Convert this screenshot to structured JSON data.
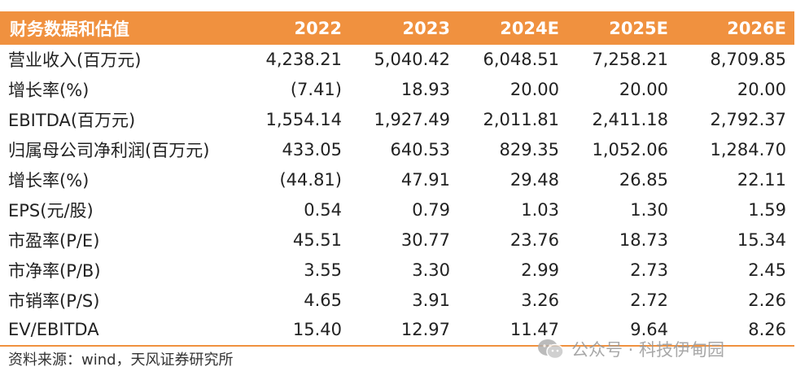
{
  "header": [
    "财务数据和估值",
    "2022",
    "2023",
    "2024E",
    "2025E",
    "2026E"
  ],
  "rows": [
    {
      "label": "营业收入(百万元)",
      "values": [
        "4,238.21",
        "5,040.42",
        "6,048.51",
        "7,258.21",
        "8,709.85"
      ]
    },
    {
      "label": "增长率(%)",
      "values": [
        "(7.41)",
        "18.93",
        "20.00",
        "20.00",
        "20.00"
      ]
    },
    {
      "label": "EBITDA(百万元)",
      "values": [
        "1,554.14",
        "1,927.49",
        "2,011.81",
        "2,411.18",
        "2,792.37"
      ]
    },
    {
      "label": "归属母公司净利润(百万元)",
      "values": [
        "433.05",
        "640.53",
        "829.35",
        "1,052.06",
        "1,284.70"
      ]
    },
    {
      "label": "增长率(%)",
      "values": [
        "(44.81)",
        "47.91",
        "29.48",
        "26.85",
        "22.11"
      ]
    },
    {
      "label": "EPS(元/股)",
      "values": [
        "0.54",
        "0.79",
        "1.03",
        "1.30",
        "1.59"
      ]
    },
    {
      "label": "市盈率(P/E)",
      "values": [
        "45.51",
        "30.77",
        "23.76",
        "18.73",
        "15.34"
      ]
    },
    {
      "label": "市净率(P/B)",
      "values": [
        "3.55",
        "3.30",
        "2.99",
        "2.73",
        "2.45"
      ]
    },
    {
      "label": "市销率(P/S)",
      "values": [
        "4.65",
        "3.91",
        "3.26",
        "2.72",
        "2.26"
      ]
    },
    {
      "label": "EV/EBITDA",
      "values": [
        "15.40",
        "12.97",
        "11.47",
        "9.64",
        "8.26"
      ]
    }
  ],
  "source": "资料来源：wind，天风证券研究所",
  "watermark": {
    "text": "公众号 · 科技伊甸园",
    "icon": "wechat-icon"
  },
  "colors": {
    "header_bg": "#f0913f",
    "header_text": "#ffffff",
    "rule": "#f0913f"
  }
}
